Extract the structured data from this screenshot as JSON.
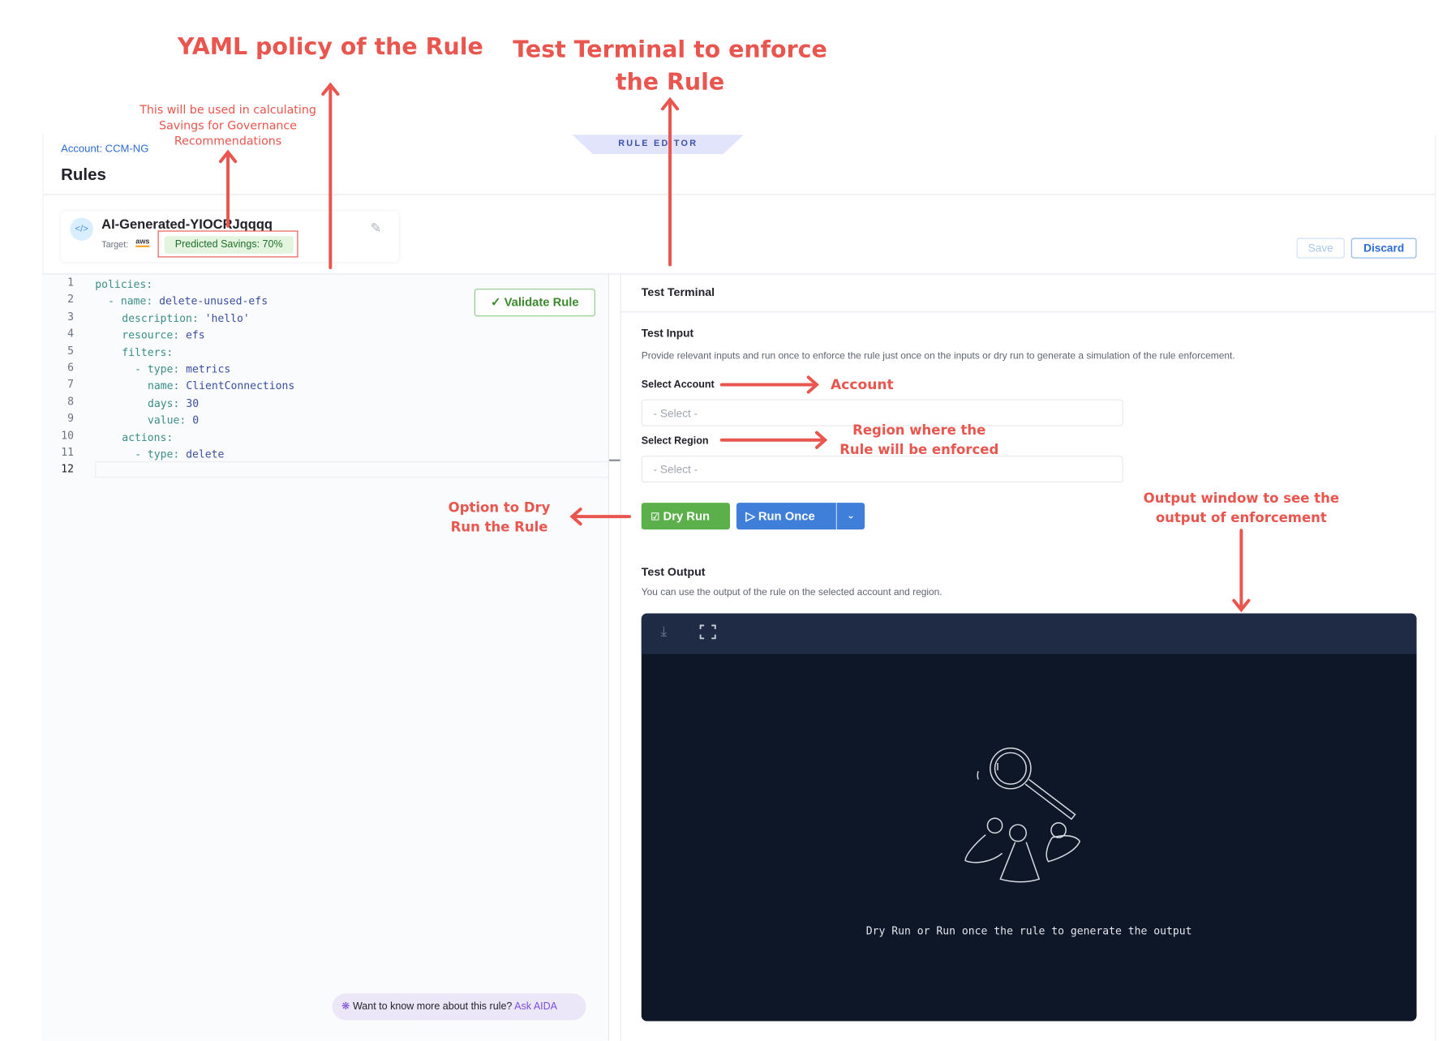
{
  "annotations": {
    "yaml": "YAML policy of the Rule",
    "terminal_line1": "Test Terminal to enforce",
    "terminal_line2": "the Rule",
    "savings_line1": "This will be used in calculating",
    "savings_line2": "Savings for Governance",
    "savings_line3": "Recommendations",
    "account": "Account",
    "region_line1": "Region where the",
    "region_line2": "Rule will be enforced",
    "dry_line1": "Option to Dry",
    "dry_line2": "Run the Rule",
    "output_line1": "Output window to see the",
    "output_line2": "output of enforcement",
    "color": "#e8564f"
  },
  "header": {
    "breadcrumb": "Account: CCM-NG",
    "title": "Rules",
    "mode_tab": "RULE EDITOR"
  },
  "rule": {
    "name": "AI-Generated-YIOCRJqqqq",
    "target_label": "Target:",
    "target_icon": "aws",
    "savings": "Predicted Savings: 70%"
  },
  "actions": {
    "save": "Save",
    "discard": "Discard"
  },
  "editor": {
    "validate": "Validate Rule",
    "lines": [
      {
        "n": "1",
        "indent": 0,
        "k": "policies:",
        "v": ""
      },
      {
        "n": "2",
        "indent": 1,
        "k": "- name: ",
        "v": "delete-unused-efs"
      },
      {
        "n": "3",
        "indent": 2,
        "k": "description: ",
        "v": "'hello'"
      },
      {
        "n": "4",
        "indent": 2,
        "k": "resource: ",
        "v": "efs"
      },
      {
        "n": "5",
        "indent": 2,
        "k": "filters:",
        "v": ""
      },
      {
        "n": "6",
        "indent": 3,
        "k": "- type: ",
        "v": "metrics"
      },
      {
        "n": "7",
        "indent": 4,
        "k": "name: ",
        "v": "ClientConnections"
      },
      {
        "n": "8",
        "indent": 4,
        "k": "days: ",
        "v": "30"
      },
      {
        "n": "9",
        "indent": 4,
        "k": "value: ",
        "v": "0"
      },
      {
        "n": "10",
        "indent": 2,
        "k": "actions:",
        "v": ""
      },
      {
        "n": "11",
        "indent": 3,
        "k": "- type: ",
        "v": "delete"
      },
      {
        "n": "12",
        "indent": 0,
        "k": "",
        "v": ""
      }
    ],
    "aida_prompt": "Want to know more about this rule?",
    "aida_link": "Ask AIDA"
  },
  "terminal": {
    "title": "Test Terminal",
    "input_title": "Test Input",
    "input_desc": "Provide relevant inputs and run once to enforce the rule just once on the inputs or dry run to generate a simulation of the rule enforcement.",
    "account_label": "Select Account",
    "account_placeholder": "- Select -",
    "region_label": "Select Region",
    "region_placeholder": "- Select -",
    "dry_run": "Dry Run",
    "run_once": "Run Once",
    "output_title": "Test Output",
    "output_desc": "You can use the output of the rule on the selected account and region.",
    "output_empty": "Dry Run or Run once the rule to generate the output"
  }
}
